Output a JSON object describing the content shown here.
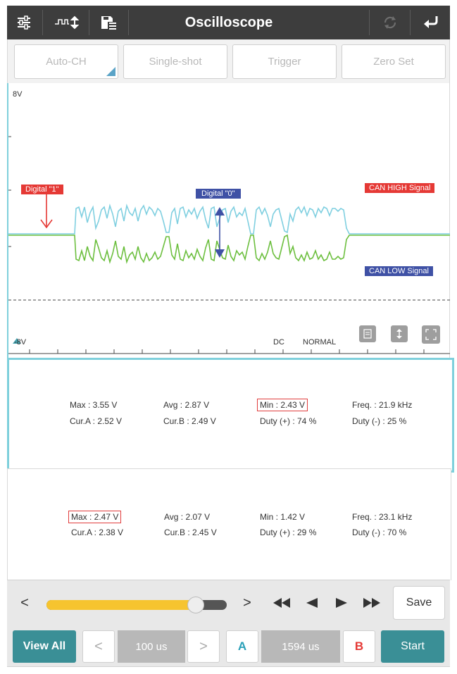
{
  "topbar": {
    "title": "Oscilloscope",
    "icons": [
      "sliders-icon",
      "pulse-arrows-icon",
      "save-list-icon",
      "refresh-icon",
      "back-arrow-icon"
    ]
  },
  "modes": {
    "auto_ch": "Auto-CH",
    "single_shot": "Single-shot",
    "trigger": "Trigger",
    "zero_set": "Zero Set"
  },
  "scope": {
    "top_label": "8V",
    "bottom_label": "-8V",
    "coupling": "DC",
    "trigger_mode": "NORMAL",
    "annotations": {
      "digital_one": "Digital \"1\"",
      "digital_zero": "Digital \"0\"",
      "can_high": "CAN HIGH Signal",
      "can_low": "CAN LOW Signal"
    },
    "colors": {
      "can_high": "#7fcfe0",
      "can_low": "#6cbf3e",
      "annot_red": "#e53935",
      "annot_blue": "#3f51a5"
    }
  },
  "channel1": {
    "max": "Max : 3.55 V",
    "avg": "Avg : 2.87 V",
    "min": "Min : 2.43 V",
    "freq": "Freq. : 21.9 kHz",
    "cur_a": "Cur.A : 2.52 V",
    "cur_b": "Cur.B : 2.49 V",
    "duty_pos": "Duty (+) : 74 %",
    "duty_neg": "Duty (-) : 25 %"
  },
  "channel2": {
    "max": "Max : 2.47 V",
    "avg": "Avg : 2.07 V",
    "min": "Min : 1.42 V",
    "freq": "Freq. : 23.1 kHz",
    "cur_a": "Cur.A : 2.38 V",
    "cur_b": "Cur.B : 2.45 V",
    "duty_pos": "Duty (+) : 29 %",
    "duty_neg": "Duty (-) : 70 %"
  },
  "playback": {
    "prev": "<",
    "next": ">",
    "slider_position": 0.83,
    "save": "Save"
  },
  "bottom": {
    "view_all": "View All",
    "time_prev": "<",
    "timebase": "100 us",
    "time_next": ">",
    "cursor_a": "A",
    "cursor_value": "1594 us",
    "cursor_b": "B",
    "start": "Start"
  }
}
